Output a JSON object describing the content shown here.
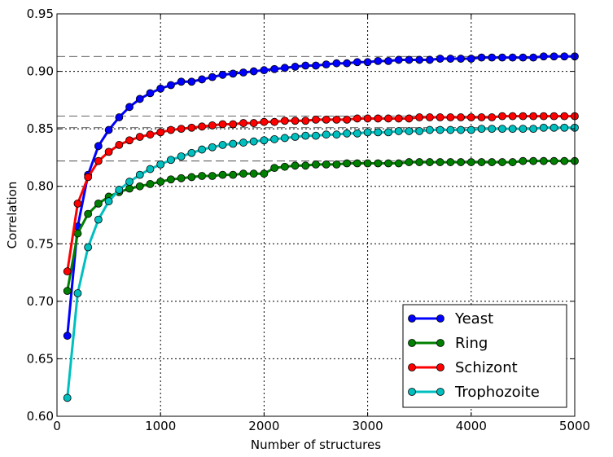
{
  "chart_data": {
    "type": "line",
    "title": "",
    "xlabel": "Number of structures",
    "ylabel": "Correlation",
    "xlim": [
      0,
      5000
    ],
    "ylim": [
      0.6,
      0.95
    ],
    "xticks": [
      0,
      1000,
      2000,
      3000,
      4000,
      5000
    ],
    "xtick_labels": [
      "0",
      "1000",
      "2000",
      "3000",
      "4000",
      "5000"
    ],
    "yticks": [
      0.6,
      0.65,
      0.7,
      0.75,
      0.8,
      0.85,
      0.9,
      0.95
    ],
    "ytick_labels": [
      "0.60",
      "0.65",
      "0.70",
      "0.75",
      "0.80",
      "0.85",
      "0.90",
      "0.95"
    ],
    "grid": true,
    "legend_position": "bottom-right",
    "reference_lines_y": [
      0.913,
      0.861,
      0.851,
      0.822
    ],
    "x": [
      100,
      200,
      300,
      400,
      500,
      600,
      700,
      800,
      900,
      1000,
      1100,
      1200,
      1300,
      1400,
      1500,
      1600,
      1700,
      1800,
      1900,
      2000,
      2100,
      2200,
      2300,
      2400,
      2500,
      2600,
      2700,
      2800,
      2900,
      3000,
      3100,
      3200,
      3300,
      3400,
      3500,
      3600,
      3700,
      3800,
      3900,
      4000,
      4100,
      4200,
      4300,
      4400,
      4500,
      4600,
      4700,
      4800,
      4900,
      5000
    ],
    "series": [
      {
        "name": "Yeast",
        "color": "#0000ff",
        "values": [
          0.67,
          0.765,
          0.81,
          0.835,
          0.849,
          0.86,
          0.869,
          0.876,
          0.881,
          0.885,
          0.888,
          0.891,
          0.891,
          0.893,
          0.895,
          0.897,
          0.898,
          0.899,
          0.9,
          0.901,
          0.902,
          0.903,
          0.904,
          0.905,
          0.905,
          0.906,
          0.907,
          0.907,
          0.908,
          0.908,
          0.909,
          0.909,
          0.91,
          0.91,
          0.91,
          0.91,
          0.911,
          0.911,
          0.911,
          0.911,
          0.912,
          0.912,
          0.912,
          0.912,
          0.912,
          0.912,
          0.913,
          0.913,
          0.913,
          0.913
        ]
      },
      {
        "name": "Ring",
        "color": "#008000",
        "values": [
          0.709,
          0.759,
          0.776,
          0.785,
          0.791,
          0.795,
          0.798,
          0.8,
          0.802,
          0.804,
          0.806,
          0.807,
          0.808,
          0.809,
          0.809,
          0.81,
          0.81,
          0.811,
          0.811,
          0.811,
          0.816,
          0.817,
          0.818,
          0.818,
          0.819,
          0.819,
          0.819,
          0.82,
          0.82,
          0.82,
          0.82,
          0.82,
          0.82,
          0.821,
          0.821,
          0.821,
          0.821,
          0.821,
          0.821,
          0.821,
          0.821,
          0.821,
          0.821,
          0.821,
          0.822,
          0.822,
          0.822,
          0.822,
          0.822,
          0.822
        ]
      },
      {
        "name": "Schizont",
        "color": "#ff0000",
        "values": [
          0.726,
          0.785,
          0.808,
          0.822,
          0.83,
          0.836,
          0.84,
          0.843,
          0.845,
          0.847,
          0.849,
          0.85,
          0.851,
          0.852,
          0.853,
          0.854,
          0.854,
          0.855,
          0.855,
          0.856,
          0.856,
          0.857,
          0.857,
          0.857,
          0.858,
          0.858,
          0.858,
          0.858,
          0.859,
          0.859,
          0.859,
          0.859,
          0.859,
          0.859,
          0.86,
          0.86,
          0.86,
          0.86,
          0.86,
          0.86,
          0.86,
          0.86,
          0.861,
          0.861,
          0.861,
          0.861,
          0.861,
          0.861,
          0.861,
          0.861
        ]
      },
      {
        "name": "Trophozoite",
        "color": "#00bfbf",
        "values": [
          0.616,
          0.707,
          0.747,
          0.771,
          0.787,
          0.797,
          0.804,
          0.81,
          0.815,
          0.819,
          0.823,
          0.826,
          0.829,
          0.832,
          0.834,
          0.836,
          0.837,
          0.838,
          0.839,
          0.84,
          0.841,
          0.842,
          0.843,
          0.844,
          0.844,
          0.845,
          0.845,
          0.846,
          0.846,
          0.847,
          0.847,
          0.847,
          0.848,
          0.848,
          0.848,
          0.849,
          0.849,
          0.849,
          0.849,
          0.849,
          0.85,
          0.85,
          0.85,
          0.85,
          0.85,
          0.85,
          0.851,
          0.851,
          0.851,
          0.851
        ]
      }
    ]
  }
}
